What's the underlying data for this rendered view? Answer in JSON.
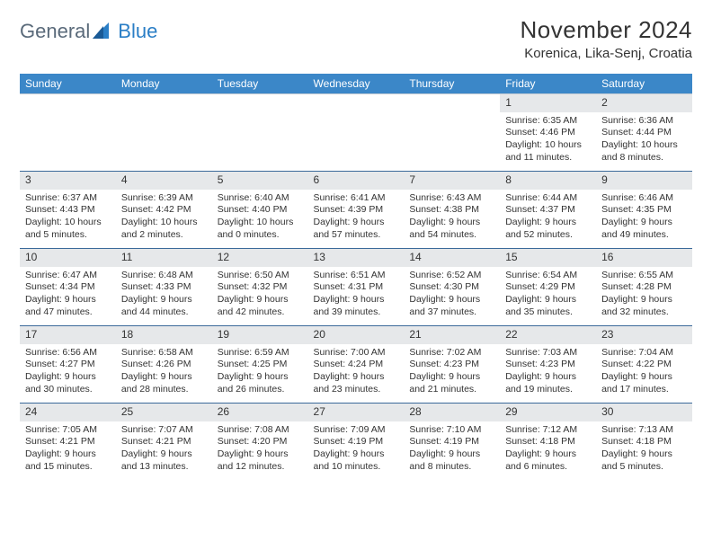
{
  "logo": {
    "general": "General",
    "blue": "Blue"
  },
  "title": "November 2024",
  "location": "Korenica, Lika-Senj, Croatia",
  "colors": {
    "header_bg": "#3b87c8",
    "header_text": "#ffffff",
    "rule": "#3b6a9a",
    "daynum_bg": "#e6e8ea",
    "body_text": "#333333",
    "logo_general": "#5a6a7a",
    "logo_blue": "#2a7ec6"
  },
  "weekdays": [
    "Sunday",
    "Monday",
    "Tuesday",
    "Wednesday",
    "Thursday",
    "Friday",
    "Saturday"
  ],
  "weeks": [
    [
      {
        "day": "",
        "sunrise": "",
        "sunset": "",
        "daylight": ""
      },
      {
        "day": "",
        "sunrise": "",
        "sunset": "",
        "daylight": ""
      },
      {
        "day": "",
        "sunrise": "",
        "sunset": "",
        "daylight": ""
      },
      {
        "day": "",
        "sunrise": "",
        "sunset": "",
        "daylight": ""
      },
      {
        "day": "",
        "sunrise": "",
        "sunset": "",
        "daylight": ""
      },
      {
        "day": "1",
        "sunrise": "Sunrise: 6:35 AM",
        "sunset": "Sunset: 4:46 PM",
        "daylight": "Daylight: 10 hours and 11 minutes."
      },
      {
        "day": "2",
        "sunrise": "Sunrise: 6:36 AM",
        "sunset": "Sunset: 4:44 PM",
        "daylight": "Daylight: 10 hours and 8 minutes."
      }
    ],
    [
      {
        "day": "3",
        "sunrise": "Sunrise: 6:37 AM",
        "sunset": "Sunset: 4:43 PM",
        "daylight": "Daylight: 10 hours and 5 minutes."
      },
      {
        "day": "4",
        "sunrise": "Sunrise: 6:39 AM",
        "sunset": "Sunset: 4:42 PM",
        "daylight": "Daylight: 10 hours and 2 minutes."
      },
      {
        "day": "5",
        "sunrise": "Sunrise: 6:40 AM",
        "sunset": "Sunset: 4:40 PM",
        "daylight": "Daylight: 10 hours and 0 minutes."
      },
      {
        "day": "6",
        "sunrise": "Sunrise: 6:41 AM",
        "sunset": "Sunset: 4:39 PM",
        "daylight": "Daylight: 9 hours and 57 minutes."
      },
      {
        "day": "7",
        "sunrise": "Sunrise: 6:43 AM",
        "sunset": "Sunset: 4:38 PM",
        "daylight": "Daylight: 9 hours and 54 minutes."
      },
      {
        "day": "8",
        "sunrise": "Sunrise: 6:44 AM",
        "sunset": "Sunset: 4:37 PM",
        "daylight": "Daylight: 9 hours and 52 minutes."
      },
      {
        "day": "9",
        "sunrise": "Sunrise: 6:46 AM",
        "sunset": "Sunset: 4:35 PM",
        "daylight": "Daylight: 9 hours and 49 minutes."
      }
    ],
    [
      {
        "day": "10",
        "sunrise": "Sunrise: 6:47 AM",
        "sunset": "Sunset: 4:34 PM",
        "daylight": "Daylight: 9 hours and 47 minutes."
      },
      {
        "day": "11",
        "sunrise": "Sunrise: 6:48 AM",
        "sunset": "Sunset: 4:33 PM",
        "daylight": "Daylight: 9 hours and 44 minutes."
      },
      {
        "day": "12",
        "sunrise": "Sunrise: 6:50 AM",
        "sunset": "Sunset: 4:32 PM",
        "daylight": "Daylight: 9 hours and 42 minutes."
      },
      {
        "day": "13",
        "sunrise": "Sunrise: 6:51 AM",
        "sunset": "Sunset: 4:31 PM",
        "daylight": "Daylight: 9 hours and 39 minutes."
      },
      {
        "day": "14",
        "sunrise": "Sunrise: 6:52 AM",
        "sunset": "Sunset: 4:30 PM",
        "daylight": "Daylight: 9 hours and 37 minutes."
      },
      {
        "day": "15",
        "sunrise": "Sunrise: 6:54 AM",
        "sunset": "Sunset: 4:29 PM",
        "daylight": "Daylight: 9 hours and 35 minutes."
      },
      {
        "day": "16",
        "sunrise": "Sunrise: 6:55 AM",
        "sunset": "Sunset: 4:28 PM",
        "daylight": "Daylight: 9 hours and 32 minutes."
      }
    ],
    [
      {
        "day": "17",
        "sunrise": "Sunrise: 6:56 AM",
        "sunset": "Sunset: 4:27 PM",
        "daylight": "Daylight: 9 hours and 30 minutes."
      },
      {
        "day": "18",
        "sunrise": "Sunrise: 6:58 AM",
        "sunset": "Sunset: 4:26 PM",
        "daylight": "Daylight: 9 hours and 28 minutes."
      },
      {
        "day": "19",
        "sunrise": "Sunrise: 6:59 AM",
        "sunset": "Sunset: 4:25 PM",
        "daylight": "Daylight: 9 hours and 26 minutes."
      },
      {
        "day": "20",
        "sunrise": "Sunrise: 7:00 AM",
        "sunset": "Sunset: 4:24 PM",
        "daylight": "Daylight: 9 hours and 23 minutes."
      },
      {
        "day": "21",
        "sunrise": "Sunrise: 7:02 AM",
        "sunset": "Sunset: 4:23 PM",
        "daylight": "Daylight: 9 hours and 21 minutes."
      },
      {
        "day": "22",
        "sunrise": "Sunrise: 7:03 AM",
        "sunset": "Sunset: 4:23 PM",
        "daylight": "Daylight: 9 hours and 19 minutes."
      },
      {
        "day": "23",
        "sunrise": "Sunrise: 7:04 AM",
        "sunset": "Sunset: 4:22 PM",
        "daylight": "Daylight: 9 hours and 17 minutes."
      }
    ],
    [
      {
        "day": "24",
        "sunrise": "Sunrise: 7:05 AM",
        "sunset": "Sunset: 4:21 PM",
        "daylight": "Daylight: 9 hours and 15 minutes."
      },
      {
        "day": "25",
        "sunrise": "Sunrise: 7:07 AM",
        "sunset": "Sunset: 4:21 PM",
        "daylight": "Daylight: 9 hours and 13 minutes."
      },
      {
        "day": "26",
        "sunrise": "Sunrise: 7:08 AM",
        "sunset": "Sunset: 4:20 PM",
        "daylight": "Daylight: 9 hours and 12 minutes."
      },
      {
        "day": "27",
        "sunrise": "Sunrise: 7:09 AM",
        "sunset": "Sunset: 4:19 PM",
        "daylight": "Daylight: 9 hours and 10 minutes."
      },
      {
        "day": "28",
        "sunrise": "Sunrise: 7:10 AM",
        "sunset": "Sunset: 4:19 PM",
        "daylight": "Daylight: 9 hours and 8 minutes."
      },
      {
        "day": "29",
        "sunrise": "Sunrise: 7:12 AM",
        "sunset": "Sunset: 4:18 PM",
        "daylight": "Daylight: 9 hours and 6 minutes."
      },
      {
        "day": "30",
        "sunrise": "Sunrise: 7:13 AM",
        "sunset": "Sunset: 4:18 PM",
        "daylight": "Daylight: 9 hours and 5 minutes."
      }
    ]
  ]
}
